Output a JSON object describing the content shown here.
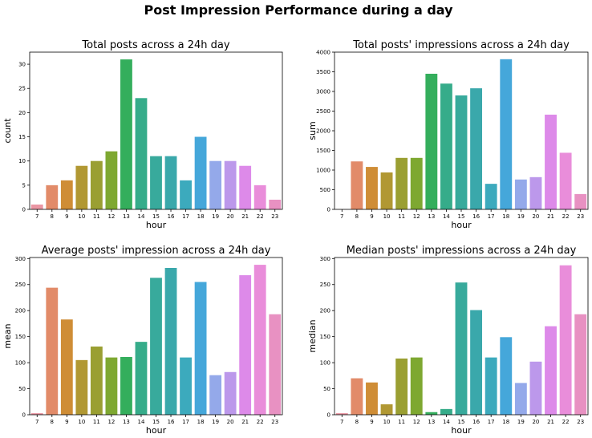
{
  "figure": {
    "title": "Post Impression Performance during a day"
  },
  "chart_data": [
    {
      "type": "bar",
      "title": "Total posts across a 24h day",
      "xlabel": "hour",
      "ylabel": "count",
      "categories": [
        "7",
        "8",
        "9",
        "10",
        "11",
        "12",
        "13",
        "14",
        "15",
        "16",
        "17",
        "18",
        "19",
        "20",
        "21",
        "22",
        "23"
      ],
      "values": [
        1,
        5,
        6,
        9,
        10,
        12,
        31,
        23,
        11,
        11,
        6,
        15,
        10,
        10,
        9,
        5,
        2
      ],
      "ylim": [
        0,
        32.5
      ],
      "yticks": [
        0,
        5,
        10,
        15,
        20,
        25,
        30
      ],
      "grid": false
    },
    {
      "type": "bar",
      "title": "Total posts' impressions across a 24h day",
      "xlabel": "hour",
      "ylabel": "sum",
      "categories": [
        "7",
        "8",
        "9",
        "10",
        "11",
        "12",
        "13",
        "14",
        "15",
        "16",
        "17",
        "18",
        "19",
        "20",
        "21",
        "22",
        "23"
      ],
      "values": [
        3,
        1220,
        1080,
        940,
        1310,
        1310,
        3450,
        3200,
        2900,
        3080,
        650,
        3820,
        760,
        820,
        2410,
        1440,
        390
      ],
      "ylim": [
        0,
        4000
      ],
      "yticks": [
        0,
        500,
        1000,
        1500,
        2000,
        2500,
        3000,
        3500,
        4000
      ],
      "grid": false
    },
    {
      "type": "bar",
      "title": "Average posts' impression across a 24h day",
      "xlabel": "hour",
      "ylabel": "mean",
      "categories": [
        "7",
        "8",
        "9",
        "10",
        "11",
        "12",
        "13",
        "14",
        "15",
        "16",
        "17",
        "18",
        "19",
        "20",
        "21",
        "22",
        "23"
      ],
      "values": [
        3,
        244,
        183,
        105,
        131,
        110,
        111,
        140,
        263,
        282,
        110,
        255,
        76,
        82,
        268,
        288,
        193
      ],
      "ylim": [
        0,
        302
      ],
      "yticks": [
        0,
        50,
        100,
        150,
        200,
        250,
        300
      ],
      "grid": false
    },
    {
      "type": "bar",
      "title": "Median posts' impressions across a 24h day",
      "xlabel": "hour",
      "ylabel": "median",
      "categories": [
        "7",
        "8",
        "9",
        "10",
        "11",
        "12",
        "13",
        "14",
        "15",
        "16",
        "17",
        "18",
        "19",
        "20",
        "21",
        "22",
        "23"
      ],
      "values": [
        3,
        70,
        62,
        20,
        108,
        110,
        5,
        11,
        254,
        201,
        110,
        149,
        61,
        102,
        170,
        287,
        193
      ],
      "ylim": [
        0,
        302
      ],
      "yticks": [
        0,
        50,
        100,
        150,
        200,
        250,
        300
      ],
      "grid": false
    }
  ],
  "palette": [
    "#ea96a3",
    "#e28b69",
    "#cf8d36",
    "#b19833",
    "#9a9f32",
    "#7ea831",
    "#34ae5c",
    "#36ac8a",
    "#38aa9c",
    "#3aa8ab",
    "#3caabd",
    "#45a7da",
    "#94a9ea",
    "#bc98eb",
    "#dd8ae9",
    "#e98dda",
    "#e891c2"
  ],
  "colors": {
    "background": "#ffffff",
    "axis": "#000000"
  }
}
